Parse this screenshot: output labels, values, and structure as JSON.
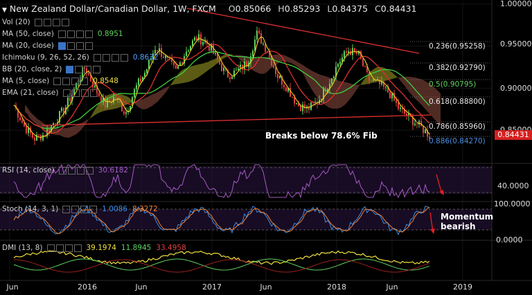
{
  "header": {
    "title": "New Zealand Dollar/Canadian Dollar, 1W, FXCM",
    "open_label": "O",
    "open": "0.85066",
    "high_label": "H",
    "high": "0.85293",
    "low_label": "L",
    "low": "0.84375",
    "close_label": "C",
    "close": "0.84431"
  },
  "indicators": [
    {
      "label": "Vol (20)",
      "value": "",
      "color": "#cfcfcf",
      "selected": false
    },
    {
      "label": "MA (50, close)",
      "value": "0.8951",
      "color": "#5fd35f",
      "selected": false
    },
    {
      "label": "MA (20, close)",
      "value": "",
      "color": "#cfcfcf",
      "selected": true
    },
    {
      "label": "Ichimoku (9, 26, 52, 26)",
      "value": "0.8632",
      "color": "#4aa3ff",
      "selected": false
    },
    {
      "label": "BB (20, close, 2)",
      "value": "",
      "color": "#cfcfcf",
      "selected": true
    },
    {
      "label": "MA (5, close)",
      "value": "0.8548",
      "color": "#f0e040",
      "selected": false
    },
    {
      "label": "EMA (21, close)",
      "value": "",
      "color": "#cfcfcf",
      "selected": false
    }
  ],
  "colors": {
    "up_candle": "#5fcf5f",
    "down_candle": "#e04040",
    "trendline": "#e03030",
    "ma50": "#3fcf3f",
    "ema21": "#e03030",
    "ma5": "#f0d020",
    "cloud_bull": "#7a7a1c",
    "cloud_bear": "#6b3a30",
    "price_tag": "#d62020"
  },
  "price_axis": {
    "labels": [
      "1.00000",
      "0.95000",
      "0.90000",
      "0.85000"
    ],
    "last_price": "0.84431"
  },
  "time_axis": {
    "labels": [
      "Jun",
      "2016",
      "Jun",
      "2017",
      "Jun",
      "2018",
      "Jun",
      "2019"
    ]
  },
  "fibonacci": [
    {
      "label": "0.236(0.95258)",
      "color": "#e8e8e8"
    },
    {
      "label": "0.382(0.92790)",
      "color": "#e8e8e8"
    },
    {
      "label": "0.5(0.90795)",
      "color": "#5fd35f"
    },
    {
      "label": "0.618(0.88800)",
      "color": "#e8e8e8"
    },
    {
      "label": "0.786(0.85960)",
      "color": "#e8e8e8"
    },
    {
      "label": "0.886(0.84270)",
      "color": "#4a8fe0"
    }
  ],
  "annotations": {
    "breaks": "Breaks below 78.6% Fib",
    "momentum": "Momentum bearish"
  },
  "rsi": {
    "label": "RSI (14, close)",
    "value": "30.6182",
    "axis_label": "40.0000"
  },
  "stoch": {
    "label": "Stoch (14, 3, 1)",
    "k_value": "1.0086",
    "d_value": "8.3272",
    "axis_top": "100.0000",
    "axis_bottom": "0.0000"
  },
  "dmi": {
    "label": "DMI (13, 8)",
    "v1": "39.1974",
    "v2": "11.8945",
    "v3": "33.4958"
  },
  "chart_data": {
    "type": "line",
    "title": "New Zealand Dollar/Canadian Dollar, 1W, FXCM",
    "xlabel": "",
    "ylabel": "",
    "ylim": [
      0.82,
      1.0
    ],
    "x": [
      "2015-06",
      "2015-07",
      "2015-08",
      "2015-09",
      "2015-10",
      "2015-11",
      "2015-12",
      "2016-01",
      "2016-02",
      "2016-03",
      "2016-04",
      "2016-05",
      "2016-06",
      "2016-07",
      "2016-08",
      "2016-09",
      "2016-10",
      "2016-11",
      "2016-12",
      "2017-01",
      "2017-02",
      "2017-03",
      "2017-04",
      "2017-05",
      "2017-06",
      "2017-07",
      "2017-08",
      "2017-09",
      "2017-10",
      "2017-11",
      "2017-12",
      "2018-01",
      "2018-02",
      "2018-03",
      "2018-04",
      "2018-05",
      "2018-06",
      "2018-07",
      "2018-08",
      "2018-09",
      "2018-10",
      "2018-11"
    ],
    "series": [
      {
        "values": [
          0.88,
          0.855,
          0.84,
          0.845,
          0.86,
          0.875,
          0.9,
          0.925,
          0.9,
          0.88,
          0.89,
          0.87,
          0.9,
          0.92,
          0.95,
          0.935,
          0.92,
          0.945,
          0.96,
          0.955,
          0.935,
          0.915,
          0.92,
          0.93,
          0.965,
          0.945,
          0.915,
          0.9,
          0.88,
          0.875,
          0.885,
          0.905,
          0.93,
          0.945,
          0.94,
          0.91,
          0.905,
          0.895,
          0.875,
          0.865,
          0.855,
          0.844
        ]
      }
    ]
  }
}
